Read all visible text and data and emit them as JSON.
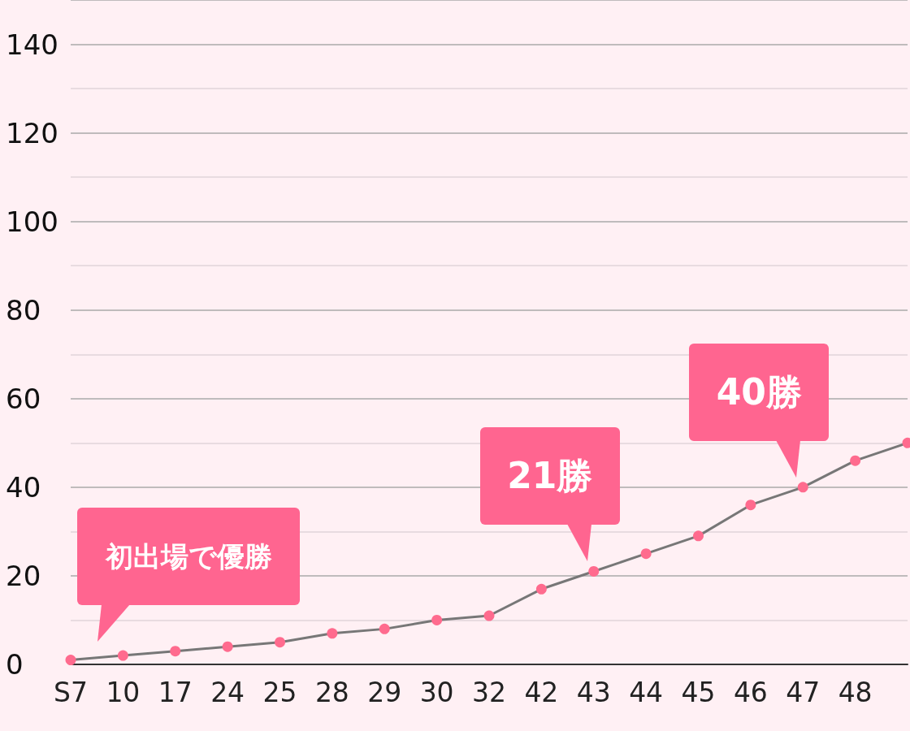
{
  "chart_data": {
    "type": "line",
    "categories": [
      "S7",
      "10",
      "17",
      "24",
      "25",
      "28",
      "29",
      "30",
      "32",
      "42",
      "43",
      "44",
      "45",
      "46",
      "47",
      "48",
      null
    ],
    "series": [
      {
        "color": "#777777",
        "colors": [
          "#ff6b8e",
          "#ff6b8e",
          "#ff6b8e",
          "#ff6b8e",
          "#ff6b8e",
          "#ff6b8e",
          "#ff6b8e",
          "#ff6b8e",
          "#ff6b8e",
          "#ff6b8e",
          "#ff6b8e",
          "#ff6b8e",
          "#ff6b8e",
          "#ff6b8e",
          "#ff6b8e",
          "#ff6b8e",
          "#ff6b8e"
        ],
        "values": [
          1,
          2,
          3,
          4,
          5,
          7,
          8,
          10,
          11,
          17,
          21,
          25,
          29,
          36,
          40,
          46,
          50
        ]
      }
    ],
    "ylim": [
      0,
      150
    ],
    "yticks": [
      0,
      20,
      40,
      60,
      80,
      100,
      120,
      140
    ],
    "grid": "y",
    "marker": "circle",
    "line_style": "solid",
    "annotations": [
      "初出場で優勝",
      {
        "text": "21勝",
        "x": "43",
        "y": 21
      },
      {
        "text": "40勝",
        "x": "47",
        "y": 40
      }
    ]
  }
}
